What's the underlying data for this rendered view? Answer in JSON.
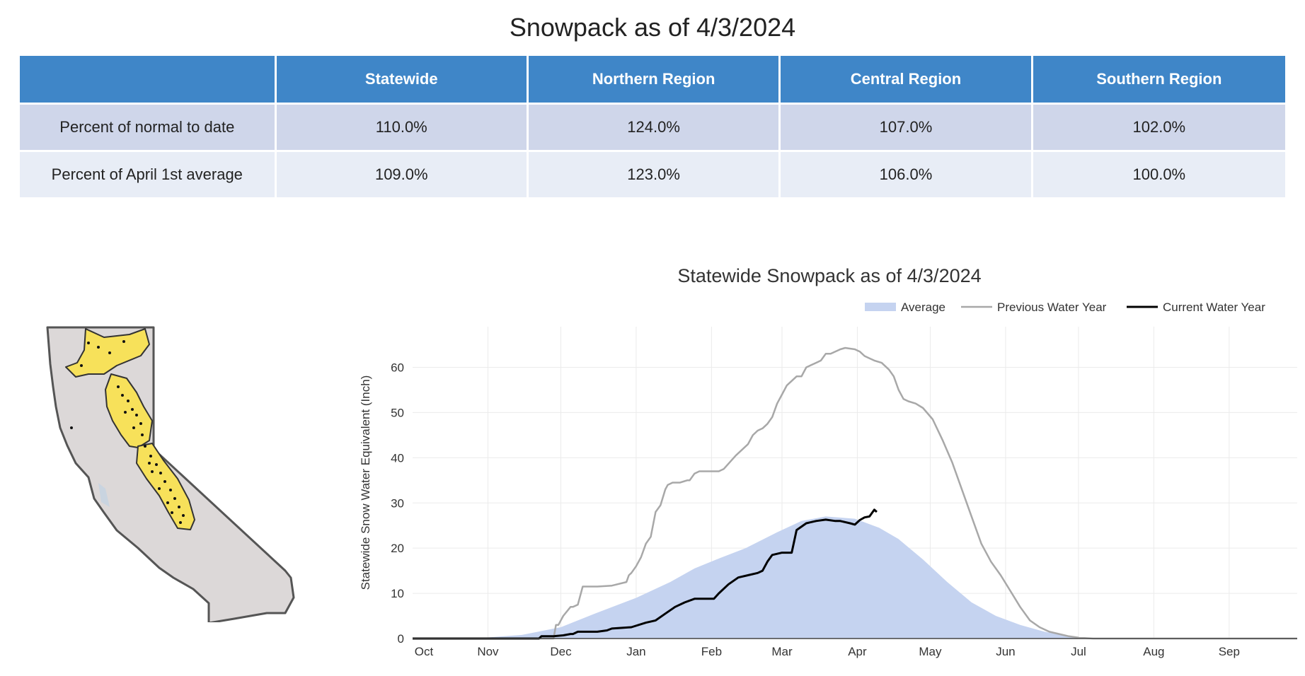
{
  "page_title": "Snowpack as of 4/3/2024",
  "table": {
    "headers": [
      "",
      "Statewide",
      "Northern Region",
      "Central Region",
      "Southern Region"
    ],
    "rows": [
      {
        "label": "Percent of normal to date",
        "values": [
          "110.0%",
          "124.0%",
          "107.0%",
          "102.0%"
        ]
      },
      {
        "label": "Percent of April 1st average",
        "values": [
          "109.0%",
          "123.0%",
          "106.0%",
          "100.0%"
        ]
      }
    ]
  },
  "colors": {
    "header_bg": "#3f86c8",
    "row1_bg": "#cfd6ea",
    "row2_bg": "#e8edf6",
    "average_fill": "#c5d3f0",
    "previous_line": "#a8a8a8",
    "current_line": "#000000",
    "map_fill": "#dcd8d8",
    "region_fill": "#f7e15a"
  },
  "chart_data": {
    "type": "area",
    "title": "Statewide Snowpack as of 4/3/2024",
    "xlabel": "",
    "ylabel": "Statewide Snow Water Equivalent (Inch)",
    "x_tick_labels": [
      "Oct",
      "Nov",
      "Dec",
      "Jan",
      "Feb",
      "Mar",
      "Apr",
      "May",
      "Jun",
      "Jul",
      "Aug",
      "Sep"
    ],
    "x_unit": "day of water year (Oct 1 = 0)",
    "ylim": [
      0,
      69
    ],
    "y_ticks": [
      0,
      10,
      20,
      30,
      40,
      50,
      60
    ],
    "grid": true,
    "legend_position": "top-right",
    "series": [
      {
        "name": "Average",
        "style": "filled area",
        "x": [
          0,
          30,
          45,
          61,
          75,
          92,
          106,
          116,
          125,
          137,
          150,
          160,
          170,
          182,
          192,
          200,
          210,
          220,
          230,
          240,
          250,
          260,
          270,
          280,
          290,
          300,
          310,
          322,
          335,
          345,
          364
        ],
        "values": [
          0,
          0.2,
          0.8,
          2.5,
          5.5,
          9,
          12.5,
          15.5,
          17.5,
          20,
          23.5,
          26,
          27,
          26.5,
          24.5,
          22,
          17.5,
          12.5,
          8,
          5,
          3,
          1.5,
          0.5,
          0.1,
          0,
          0,
          0,
          0,
          0,
          0,
          0
        ]
      },
      {
        "name": "Previous Water Year",
        "style": "line",
        "x": [
          0,
          30,
          58,
          59,
          60,
          62,
          65,
          66,
          68,
          70,
          72,
          74,
          76,
          82,
          88,
          89,
          90,
          92,
          94,
          96,
          98,
          100,
          102,
          104,
          105,
          107,
          109,
          110,
          113,
          114,
          116,
          118,
          120,
          122,
          124,
          126,
          128,
          133,
          138,
          140,
          142,
          144,
          146,
          148,
          150,
          152,
          154,
          156,
          158,
          160,
          162,
          164,
          166,
          168,
          170,
          172,
          176,
          178,
          182,
          184,
          186,
          188,
          190,
          193,
          196,
          198,
          200,
          202,
          204,
          207,
          210,
          214,
          218,
          222,
          226,
          230,
          234,
          238,
          242,
          246,
          250,
          254,
          258,
          262,
          266,
          270,
          274,
          280,
          290,
          364
        ],
        "values": [
          0,
          0,
          0,
          3,
          3,
          5,
          7,
          7,
          7.5,
          11.5,
          11.5,
          11.5,
          11.5,
          11.7,
          12.5,
          14,
          14.5,
          16,
          18,
          21,
          22.5,
          28,
          29.5,
          33,
          34,
          34.5,
          34.5,
          34.5,
          35,
          35,
          36.5,
          37,
          37,
          37,
          37,
          37,
          37.5,
          40.5,
          43,
          45,
          46,
          46.5,
          47.5,
          49,
          52,
          54,
          56,
          57,
          58,
          58,
          60,
          60.5,
          61,
          61.5,
          63,
          63,
          64,
          64.3,
          64,
          63.5,
          62.5,
          62,
          61.5,
          61,
          59.5,
          58,
          55,
          53,
          52.5,
          52,
          51,
          48.5,
          44,
          39,
          33,
          27,
          21,
          17,
          14,
          10.5,
          7,
          4,
          2.5,
          1.5,
          1,
          0.5,
          0.2,
          0,
          0,
          0
        ]
      },
      {
        "name": "Current Water Year",
        "style": "line",
        "x": [
          0,
          52,
          53,
          58,
          62,
          65,
          66,
          68,
          70,
          76,
          80,
          82,
          90,
          96,
          100,
          104,
          108,
          112,
          116,
          120,
          124,
          126,
          130,
          134,
          138,
          142,
          144,
          146,
          148,
          152,
          156,
          158,
          162,
          166,
          170,
          174,
          176,
          180,
          182,
          184,
          186,
          188,
          190,
          191
        ],
        "values": [
          0,
          0,
          0.5,
          0.5,
          0.7,
          1,
          1,
          1.5,
          1.5,
          1.5,
          1.8,
          2.2,
          2.5,
          3.5,
          4,
          5.5,
          7,
          8,
          8.8,
          8.8,
          8.8,
          10,
          12,
          13.5,
          14,
          14.5,
          15,
          17,
          18.5,
          19,
          19,
          24,
          25.5,
          26,
          26.3,
          26,
          26,
          25.5,
          25.2,
          26.2,
          26.8,
          27,
          28.5,
          28
        ]
      }
    ]
  },
  "map": {
    "semantic": "california-map-with-snow-regions"
  }
}
